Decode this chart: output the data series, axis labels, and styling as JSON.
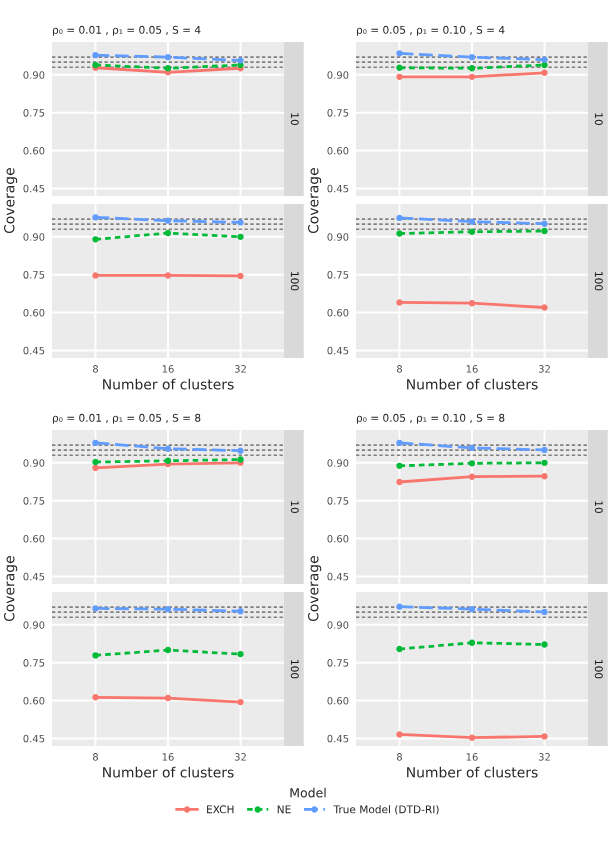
{
  "chart_data": [
    {
      "type": "line",
      "title": "ρ₀ = 0.01 , ρ₁ = 0.05 , S = 4",
      "ylabel": "Coverage",
      "annotations": [
        "10"
      ],
      "categories": [
        "8",
        "16",
        "32"
      ],
      "ylim": [
        0.42,
        1.03
      ],
      "yticks": [
        {
          "value": 0.45,
          "label": "0.45"
        },
        {
          "value": 0.6,
          "label": "0.60"
        },
        {
          "value": 0.75,
          "label": "0.75"
        },
        {
          "value": 0.9,
          "label": "0.90"
        }
      ],
      "grid": true,
      "tick_labels": "y",
      "marker": "circle",
      "ref_lines": [
        {
          "axis": "y",
          "value": 0.93,
          "color": "#808080",
          "line_style": "dotted"
        },
        {
          "axis": "y",
          "value": 0.95,
          "color": "#808080",
          "line_style": "dotted"
        },
        {
          "axis": "y",
          "value": 0.97,
          "color": "#808080",
          "line_style": "dotted"
        }
      ],
      "series": [
        {
          "color": "#f8766d",
          "line_style": "solid",
          "values": [
            0.928,
            0.91,
            0.926
          ]
        },
        {
          "color": "#00ba38",
          "line_style": "dotted",
          "values": [
            0.939,
            0.926,
            0.939
          ]
        },
        {
          "color": "#619cff",
          "line_style": "dashed",
          "values": [
            0.978,
            0.97,
            0.957
          ]
        }
      ]
    },
    {
      "type": "line",
      "xlabel": "Number of clusters",
      "annotations": [
        "100"
      ],
      "categories": [
        "8",
        "16",
        "32"
      ],
      "ylim": [
        0.42,
        1.03
      ],
      "yticks": [
        {
          "value": 0.45,
          "label": "0.45"
        },
        {
          "value": 0.6,
          "label": "0.60"
        },
        {
          "value": 0.75,
          "label": "0.75"
        },
        {
          "value": 0.9,
          "label": "0.90"
        }
      ],
      "grid": true,
      "marker": "circle",
      "ref_lines": [
        {
          "axis": "y",
          "value": 0.93,
          "color": "#808080",
          "line_style": "dotted"
        },
        {
          "axis": "y",
          "value": 0.95,
          "color": "#808080",
          "line_style": "dotted"
        },
        {
          "axis": "y",
          "value": 0.97,
          "color": "#808080",
          "line_style": "dotted"
        }
      ],
      "series": [
        {
          "color": "#f8766d",
          "line_style": "solid",
          "values": [
            0.747,
            0.747,
            0.745
          ]
        },
        {
          "color": "#00ba38",
          "line_style": "dotted",
          "values": [
            0.89,
            0.915,
            0.9
          ]
        },
        {
          "color": "#619cff",
          "line_style": "dashed",
          "values": [
            0.977,
            0.964,
            0.957
          ]
        }
      ]
    },
    {
      "type": "line",
      "title": "ρ₀ = 0.05 , ρ₁ = 0.10 , S = 4",
      "ylabel": "Coverage",
      "annotations": [
        "10"
      ],
      "categories": [
        "8",
        "16",
        "32"
      ],
      "ylim": [
        0.42,
        1.03
      ],
      "yticks": [
        {
          "value": 0.45,
          "label": "0.45"
        },
        {
          "value": 0.6,
          "label": "0.60"
        },
        {
          "value": 0.75,
          "label": "0.75"
        },
        {
          "value": 0.9,
          "label": "0.90"
        }
      ],
      "grid": true,
      "tick_labels": "y",
      "marker": "circle",
      "ref_lines": [
        {
          "axis": "y",
          "value": 0.93,
          "color": "#808080",
          "line_style": "dotted"
        },
        {
          "axis": "y",
          "value": 0.95,
          "color": "#808080",
          "line_style": "dotted"
        },
        {
          "axis": "y",
          "value": 0.97,
          "color": "#808080",
          "line_style": "dotted"
        }
      ],
      "series": [
        {
          "color": "#f8766d",
          "line_style": "solid",
          "values": [
            0.892,
            0.892,
            0.908
          ]
        },
        {
          "color": "#00ba38",
          "line_style": "dotted",
          "values": [
            0.928,
            0.926,
            0.939
          ]
        },
        {
          "color": "#619cff",
          "line_style": "dashed",
          "values": [
            0.985,
            0.97,
            0.96
          ]
        }
      ]
    },
    {
      "type": "line",
      "xlabel": "Number of clusters",
      "annotations": [
        "100"
      ],
      "categories": [
        "8",
        "16",
        "32"
      ],
      "ylim": [
        0.42,
        1.03
      ],
      "yticks": [
        {
          "value": 0.45,
          "label": "0.45"
        },
        {
          "value": 0.6,
          "label": "0.60"
        },
        {
          "value": 0.75,
          "label": "0.75"
        },
        {
          "value": 0.9,
          "label": "0.90"
        }
      ],
      "grid": true,
      "marker": "circle",
      "ref_lines": [
        {
          "axis": "y",
          "value": 0.93,
          "color": "#808080",
          "line_style": "dotted"
        },
        {
          "axis": "y",
          "value": 0.95,
          "color": "#808080",
          "line_style": "dotted"
        },
        {
          "axis": "y",
          "value": 0.97,
          "color": "#808080",
          "line_style": "dotted"
        }
      ],
      "series": [
        {
          "color": "#f8766d",
          "line_style": "solid",
          "values": [
            0.64,
            0.637,
            0.62
          ]
        },
        {
          "color": "#00ba38",
          "line_style": "dotted",
          "values": [
            0.913,
            0.92,
            0.923
          ]
        },
        {
          "color": "#619cff",
          "line_style": "dashed",
          "values": [
            0.975,
            0.96,
            0.952
          ]
        }
      ]
    },
    {
      "type": "line",
      "title": "ρ₀ = 0.01 , ρ₁ = 0.05 , S = 8",
      "ylabel": "Coverage",
      "annotations": [
        "10"
      ],
      "categories": [
        "8",
        "16",
        "32"
      ],
      "ylim": [
        0.42,
        1.03
      ],
      "yticks": [
        {
          "value": 0.45,
          "label": "0.45"
        },
        {
          "value": 0.6,
          "label": "0.60"
        },
        {
          "value": 0.75,
          "label": "0.75"
        },
        {
          "value": 0.9,
          "label": "0.90"
        }
      ],
      "grid": true,
      "tick_labels": "y",
      "marker": "circle",
      "ref_lines": [
        {
          "axis": "y",
          "value": 0.93,
          "color": "#808080",
          "line_style": "dotted"
        },
        {
          "axis": "y",
          "value": 0.95,
          "color": "#808080",
          "line_style": "dotted"
        },
        {
          "axis": "y",
          "value": 0.97,
          "color": "#808080",
          "line_style": "dotted"
        }
      ],
      "series": [
        {
          "color": "#f8766d",
          "line_style": "solid",
          "values": [
            0.88,
            0.895,
            0.9
          ]
        },
        {
          "color": "#00ba38",
          "line_style": "dotted",
          "values": [
            0.903,
            0.908,
            0.913
          ]
        },
        {
          "color": "#619cff",
          "line_style": "dashed",
          "values": [
            0.979,
            0.956,
            0.948
          ]
        }
      ]
    },
    {
      "type": "line",
      "xlabel": "Number of clusters",
      "annotations": [
        "100"
      ],
      "categories": [
        "8",
        "16",
        "32"
      ],
      "ylim": [
        0.42,
        1.03
      ],
      "yticks": [
        {
          "value": 0.45,
          "label": "0.45"
        },
        {
          "value": 0.6,
          "label": "0.60"
        },
        {
          "value": 0.75,
          "label": "0.75"
        },
        {
          "value": 0.9,
          "label": "0.90"
        }
      ],
      "grid": true,
      "marker": "circle",
      "ref_lines": [
        {
          "axis": "y",
          "value": 0.93,
          "color": "#808080",
          "line_style": "dotted"
        },
        {
          "axis": "y",
          "value": 0.95,
          "color": "#808080",
          "line_style": "dotted"
        },
        {
          "axis": "y",
          "value": 0.97,
          "color": "#808080",
          "line_style": "dotted"
        }
      ],
      "series": [
        {
          "color": "#f8766d",
          "line_style": "solid",
          "values": [
            0.613,
            0.61,
            0.594
          ]
        },
        {
          "color": "#00ba38",
          "line_style": "dotted",
          "values": [
            0.779,
            0.8,
            0.784
          ]
        },
        {
          "color": "#619cff",
          "line_style": "dashed",
          "values": [
            0.965,
            0.962,
            0.954
          ]
        }
      ]
    },
    {
      "type": "line",
      "title": "ρ₀ = 0.05 , ρ₁ = 0.10 , S = 8",
      "ylabel": "Coverage",
      "annotations": [
        "10"
      ],
      "categories": [
        "8",
        "16",
        "32"
      ],
      "ylim": [
        0.42,
        1.03
      ],
      "yticks": [
        {
          "value": 0.45,
          "label": "0.45"
        },
        {
          "value": 0.6,
          "label": "0.60"
        },
        {
          "value": 0.75,
          "label": "0.75"
        },
        {
          "value": 0.9,
          "label": "0.90"
        }
      ],
      "grid": true,
      "tick_labels": "y",
      "marker": "circle",
      "ref_lines": [
        {
          "axis": "y",
          "value": 0.93,
          "color": "#808080",
          "line_style": "dotted"
        },
        {
          "axis": "y",
          "value": 0.95,
          "color": "#808080",
          "line_style": "dotted"
        },
        {
          "axis": "y",
          "value": 0.97,
          "color": "#808080",
          "line_style": "dotted"
        }
      ],
      "series": [
        {
          "color": "#f8766d",
          "line_style": "solid",
          "values": [
            0.824,
            0.845,
            0.847
          ]
        },
        {
          "color": "#00ba38",
          "line_style": "dotted",
          "values": [
            0.888,
            0.898,
            0.9
          ]
        },
        {
          "color": "#619cff",
          "line_style": "dashed",
          "values": [
            0.979,
            0.959,
            0.951
          ]
        }
      ]
    },
    {
      "type": "line",
      "xlabel": "Number of clusters",
      "annotations": [
        "100"
      ],
      "categories": [
        "8",
        "16",
        "32"
      ],
      "ylim": [
        0.42,
        1.03
      ],
      "yticks": [
        {
          "value": 0.45,
          "label": "0.45"
        },
        {
          "value": 0.6,
          "label": "0.60"
        },
        {
          "value": 0.75,
          "label": "0.75"
        },
        {
          "value": 0.9,
          "label": "0.90"
        }
      ],
      "grid": true,
      "marker": "circle",
      "legend": "bottom",
      "legend_title": "Model",
      "ref_lines": [
        {
          "axis": "y",
          "value": 0.93,
          "color": "#808080",
          "line_style": "dotted"
        },
        {
          "axis": "y",
          "value": 0.95,
          "color": "#808080",
          "line_style": "dotted"
        },
        {
          "axis": "y",
          "value": 0.97,
          "color": "#808080",
          "line_style": "dotted"
        }
      ],
      "series": [
        {
          "name": "EXCH",
          "color": "#f8766d",
          "line_style": "solid",
          "values": [
            0.466,
            0.453,
            0.458
          ]
        },
        {
          "name": "NE",
          "color": "#00ba38",
          "line_style": "dotted",
          "values": [
            0.804,
            0.829,
            0.822
          ]
        },
        {
          "name": "True Model (DTD-RI)",
          "color": "#619cff",
          "line_style": "dashed",
          "values": [
            0.972,
            0.962,
            0.951
          ]
        }
      ]
    }
  ]
}
